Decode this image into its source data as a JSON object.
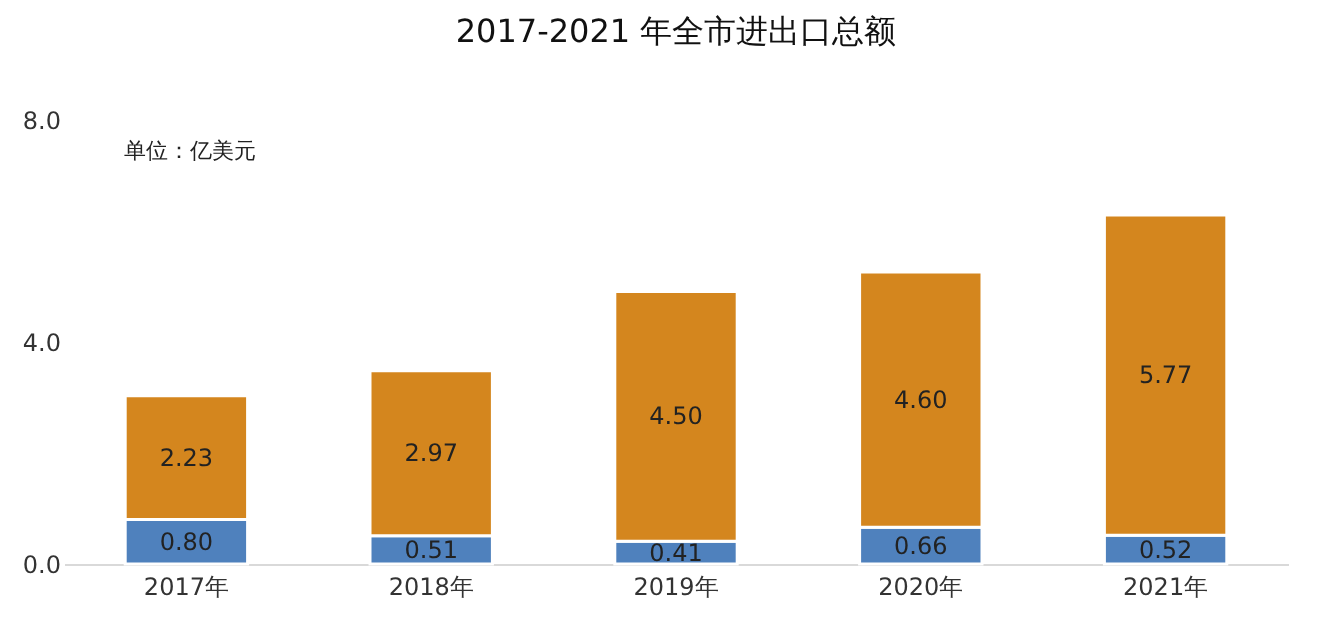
{
  "chart_data": {
    "type": "bar",
    "title": "2017-2021 年全市进出口总额",
    "annotations": [
      "单位：亿美元"
    ],
    "categories": [
      "2017年",
      "2018年",
      "2019年",
      "2020年",
      "2021年"
    ],
    "stacked": true,
    "series": [
      {
        "color": "#4f81bd",
        "values": [
          0.8,
          0.51,
          0.41,
          0.66,
          0.52
        ],
        "value_labels": [
          "0.80",
          "0.51",
          "0.41",
          "0.66",
          "0.52"
        ]
      },
      {
        "color": "#d4861e",
        "values": [
          2.23,
          2.97,
          4.5,
          4.6,
          5.77
        ],
        "value_labels": [
          "2.23",
          "2.97",
          "4.50",
          "4.60",
          "5.77"
        ]
      }
    ],
    "ylim": [
      0,
      8
    ],
    "yticks": [
      {
        "value": 0,
        "label": "0.0"
      },
      {
        "value": 4,
        "label": "4.0"
      },
      {
        "value": 8,
        "label": "8.0"
      }
    ]
  }
}
